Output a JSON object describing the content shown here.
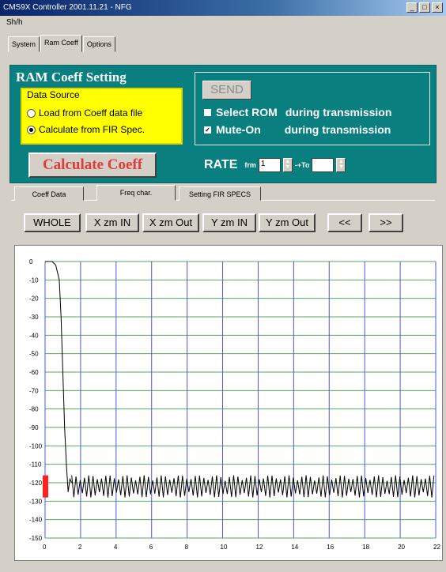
{
  "window": {
    "title": "CMS9X Controller 2001.11.21 - NFG",
    "minimize": "_",
    "maximize": "□",
    "close": "×"
  },
  "menu": {
    "item": "Sh/h"
  },
  "top_tabs": [
    "System",
    "Ram Coeff",
    "Options"
  ],
  "ram_coeff": {
    "title": "RAM Coeff Setting",
    "data_source": {
      "label": "Data Source",
      "options": [
        "Load from Coeff data file",
        "Calculate from FIR Spec."
      ],
      "selected": 1
    },
    "send": {
      "button": "SEND",
      "opt1_a": "Select ROM",
      "opt1_b": "during transmission",
      "opt2_a": "Mute-On",
      "opt2_b": "during transmission"
    },
    "calculate_button": "Calculate Coeff",
    "rate": {
      "label": "RATE",
      "from_label": "frm",
      "to_label": "-+To",
      "from_value": "1",
      "to_value": ""
    }
  },
  "sub_tabs": [
    "Coeff Data",
    "Freq char.",
    "Setting FIR SPECS"
  ],
  "zoom_buttons": [
    "WHOLE",
    "X zm IN",
    "X zm Out",
    "Y zm IN",
    "Y zm Out",
    "<<",
    ">>"
  ],
  "chart_data": {
    "type": "line",
    "title": "",
    "xlabel": "",
    "ylabel": "",
    "xlim": [
      0,
      22
    ],
    "ylim": [
      -150,
      0
    ],
    "x_ticks": [
      0,
      2,
      4,
      6,
      8,
      10,
      12,
      14,
      16,
      18,
      20,
      22
    ],
    "y_ticks": [
      0,
      -10,
      -20,
      -30,
      -40,
      -50,
      -60,
      -70,
      -80,
      -90,
      -100,
      -110,
      -120,
      -130,
      -140,
      -150
    ],
    "grid": true,
    "colors": {
      "line": "#000000",
      "grid_h": "#5aa85a",
      "grid_v": "#4a5ae0",
      "marker": "#ff2020"
    },
    "series": [
      {
        "x": [
          0,
          0.2,
          0.4,
          0.6,
          0.8,
          0.9,
          1.0,
          1.1,
          1.2,
          1.3,
          1.4,
          1.5
        ],
        "y": [
          0,
          0,
          0,
          -2,
          -10,
          -30,
          -60,
          -90,
          -110,
          -125,
          -118,
          -120
        ]
      }
    ],
    "stopband": {
      "x_start": 1.5,
      "x_end": 22,
      "center": -122,
      "ripple": 6
    }
  }
}
